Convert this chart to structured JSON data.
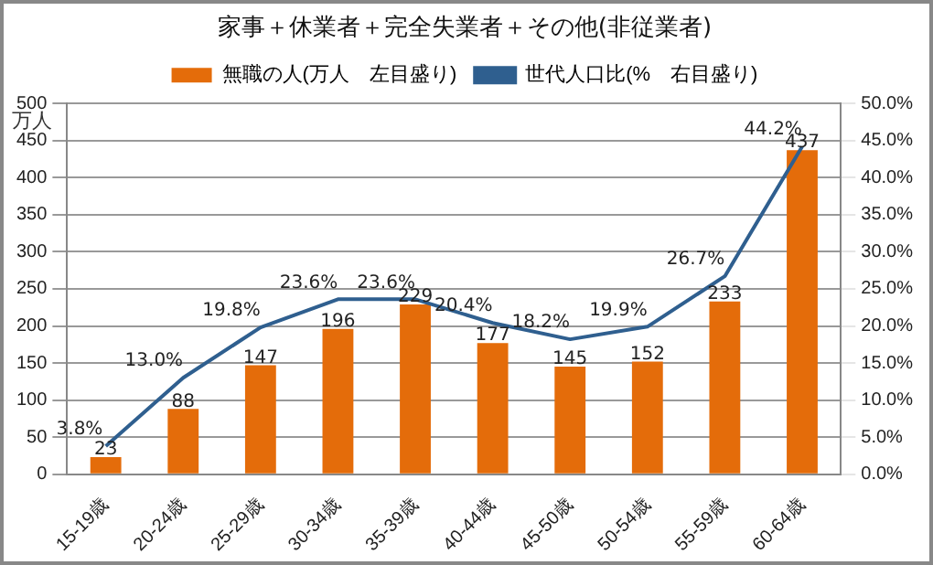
{
  "chart_data": {
    "type": "bar",
    "title": "家事＋休業者＋完全失業者＋その他(非従業者)",
    "ylabel": "万人",
    "categories": [
      "15-19歳",
      "20-24歳",
      "25-29歳",
      "30-34歳",
      "35-39歳",
      "40-44歳",
      "45-50歳",
      "50-54歳",
      "55-59歳",
      "60-64歳"
    ],
    "series": [
      {
        "name": "無職の人(万人　左目盛り)",
        "color": "#e46c0a",
        "values": [
          23,
          88,
          147,
          196,
          229,
          177,
          145,
          152,
          233,
          437
        ],
        "value_labels": [
          "23",
          "88",
          "147",
          "196",
          "229",
          "177",
          "145",
          "152",
          "233",
          "437"
        ]
      },
      {
        "name": "世代人口比(%　右目盛り)",
        "type": "line",
        "axis": "y2",
        "color": "#2f5f8f",
        "values": [
          3.8,
          13.0,
          19.8,
          23.6,
          23.6,
          20.4,
          18.2,
          19.9,
          26.7,
          44.2
        ],
        "value_labels": [
          "3.8%",
          "13.0%",
          "19.8%",
          "23.6%",
          "23.6%",
          "20.4%",
          "18.2%",
          "19.9%",
          "26.7%",
          "44.2%"
        ]
      }
    ],
    "ylim": [
      0,
      500
    ],
    "yticks": [
      0,
      50,
      100,
      150,
      200,
      250,
      300,
      350,
      400,
      450,
      500
    ],
    "y2lim": [
      0,
      50
    ],
    "y2ticks": [
      {
        "value": 0,
        "label": "0.0%"
      },
      {
        "value": 5,
        "label": "5.0%"
      },
      {
        "value": 10,
        "label": "10.0%"
      },
      {
        "value": 15,
        "label": "15.0%"
      },
      {
        "value": 20,
        "label": "20.0%"
      },
      {
        "value": 25,
        "label": "25.0%"
      },
      {
        "value": 30,
        "label": "30.0%"
      },
      {
        "value": 35,
        "label": "35.0%"
      },
      {
        "value": 40,
        "label": "40.0%"
      },
      {
        "value": 45,
        "label": "45.0%"
      },
      {
        "value": 50,
        "label": "50.0%"
      }
    ],
    "grid": "y",
    "legend": "top",
    "marker": "none",
    "line_style": "solid"
  }
}
